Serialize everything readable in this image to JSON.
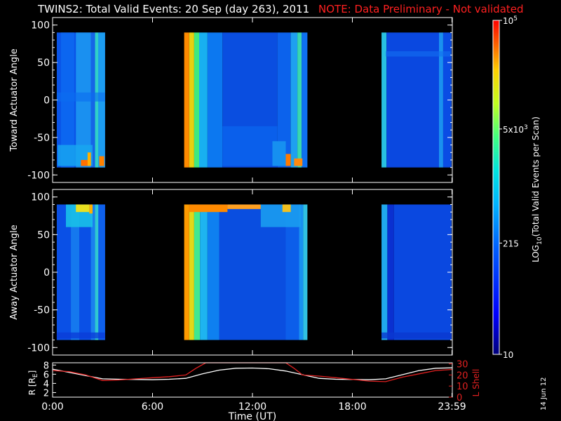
{
  "header": {
    "title": "TWINS2: Total Valid Events: 20 Sep (day 263), 2011",
    "note": "NOTE: Data Preliminary - Not validated"
  },
  "date_stamp": "14 Jun 12",
  "colors": {
    "background": "#000000",
    "axes": "#ffffff",
    "note": "#ff2020",
    "lshell": "#e02020",
    "radius": "#ffffff"
  },
  "chart_data": [
    {
      "type": "heatmap",
      "panel": "toward",
      "ylabel": "Toward Actuator Angle",
      "ylim": [
        -110,
        110
      ],
      "yticks": [
        "100",
        "50",
        "0",
        "-50",
        "-100"
      ],
      "ytick_values": [
        100,
        50,
        0,
        -50,
        -100
      ],
      "xlim": [
        0,
        24
      ],
      "grid": false
    },
    {
      "type": "heatmap",
      "panel": "away",
      "ylabel": "Away Actuator Angle",
      "ylim": [
        -110,
        110
      ],
      "yticks": [
        "100",
        "50",
        "0",
        "-50",
        "-100"
      ],
      "ytick_values": [
        100,
        50,
        0,
        -50,
        -100
      ],
      "xlim": [
        0,
        24
      ],
      "grid": false
    },
    {
      "type": "line",
      "panel": "orbit",
      "xlabel": "Time (UT)",
      "xticks": [
        "0:00",
        "6:00",
        "12:00",
        "18:00",
        "23:59"
      ],
      "xtick_values": [
        0,
        6,
        12,
        18,
        23.98
      ],
      "xlim": [
        0,
        24
      ],
      "ylabel_left": "R [R",
      "ylabel_left_sub": "E",
      "ylabel_left_end": "]",
      "ylabel_right": "L Shell",
      "yticks_left": [
        "8",
        "6",
        "4",
        "2"
      ],
      "ytick_values_left": [
        8,
        6,
        4,
        2
      ],
      "ylim_left": [
        1,
        8.5
      ],
      "yticks_right": [
        "30",
        "20",
        "10",
        "0"
      ],
      "ytick_values_right": [
        30,
        20,
        10,
        0
      ],
      "ylim_right": [
        0,
        31
      ],
      "series": [
        {
          "name": "R",
          "axis": "left",
          "color": "#ffffff",
          "x": [
            0,
            1,
            2,
            3,
            4,
            5,
            6,
            7,
            8,
            9,
            10,
            11,
            12,
            13,
            14,
            15,
            16,
            17,
            18,
            19,
            20,
            21,
            22,
            23,
            24
          ],
          "y": [
            7.1,
            6.4,
            5.7,
            5.0,
            4.9,
            4.85,
            4.8,
            4.9,
            5.1,
            6.1,
            6.9,
            7.3,
            7.35,
            7.2,
            6.7,
            5.9,
            5.1,
            4.9,
            4.85,
            4.8,
            5.0,
            5.9,
            6.8,
            7.3,
            7.4
          ]
        },
        {
          "name": "L Shell",
          "axis": "right",
          "color": "#e02020",
          "x": [
            0,
            1,
            2,
            3,
            4,
            5,
            6,
            7,
            8,
            8.6,
            9.2,
            14.0,
            14.5,
            15,
            16,
            17,
            18,
            19,
            20,
            21,
            22,
            23,
            24
          ],
          "y": [
            24,
            23,
            20,
            15,
            15.5,
            16.5,
            17.5,
            18.5,
            20,
            26,
            31,
            31,
            26,
            20,
            19,
            17.5,
            16,
            14.5,
            14,
            18,
            21,
            24,
            25
          ]
        }
      ]
    },
    {
      "type": "heatmap",
      "panel": "colorbar",
      "ylabel": "LOG",
      "ylabel_sub": "10",
      "ylabel_rest": "(Total Valid Events per Scan)",
      "scale": "log",
      "range": [
        10,
        100000
      ],
      "ticks": [
        {
          "label": "10",
          "value": 10
        },
        {
          "label": "215",
          "value": 215
        },
        {
          "label": "5x10",
          "sup": "3",
          "value": 5000
        },
        {
          "label": "10",
          "sup": "5",
          "value": 100000
        }
      ]
    }
  ]
}
